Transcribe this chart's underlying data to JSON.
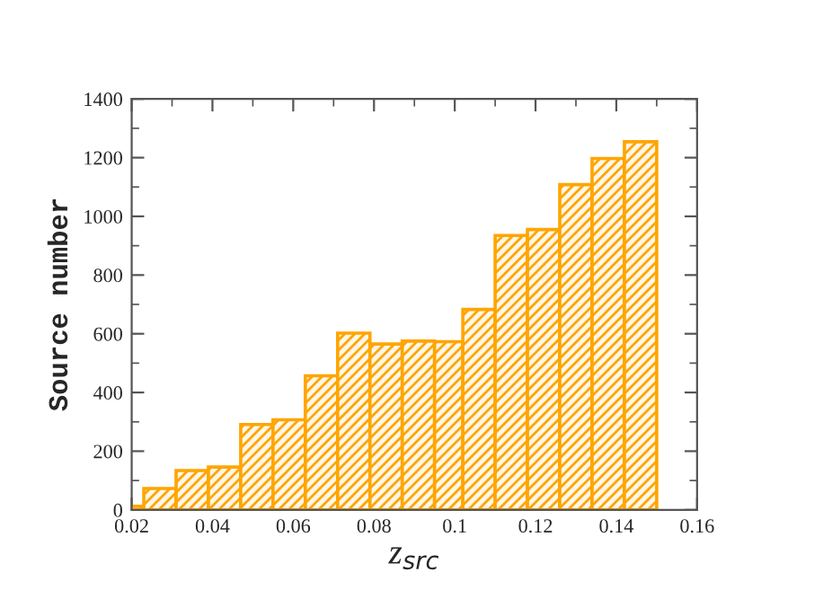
{
  "chart_data": {
    "type": "histogram",
    "xlabel": "z$_{src}$",
    "ylabel": "Source number",
    "color": "#ffa500",
    "bins": [
      0.02,
      0.023,
      0.031,
      0.039,
      0.047,
      0.055,
      0.063,
      0.071,
      0.079,
      0.087,
      0.095,
      0.102,
      0.11,
      0.118,
      0.126,
      0.134,
      0.142,
      0.15
    ],
    "values": [
      12,
      73,
      134,
      146,
      291,
      307,
      457,
      602,
      565,
      575,
      573,
      683,
      935,
      955,
      1108,
      1197,
      1254
    ],
    "xlim": [
      0.02,
      0.16
    ],
    "xticks": [
      {
        "value": 0.02,
        "label": "0.02"
      },
      {
        "value": 0.04,
        "label": "0.04"
      },
      {
        "value": 0.06,
        "label": "0.06"
      },
      {
        "value": 0.08,
        "label": "0.08"
      },
      {
        "value": 0.1,
        "label": "0.1"
      },
      {
        "value": 0.12,
        "label": "0.12"
      },
      {
        "value": 0.14,
        "label": "0.14"
      },
      {
        "value": 0.16,
        "label": "0.16"
      }
    ],
    "ylim": [
      0,
      1400
    ],
    "yticks": [
      0,
      200,
      400,
      600,
      800,
      1000,
      1200,
      1400
    ],
    "grid": false
  }
}
